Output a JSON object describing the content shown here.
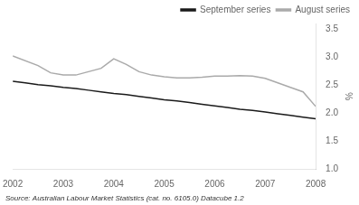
{
  "chart_data": {
    "type": "line",
    "series": [
      {
        "name": "September series",
        "color": "#1a1a1a",
        "x": [
          2002,
          2002.25,
          2002.5,
          2002.75,
          2003,
          2003.25,
          2003.5,
          2003.75,
          2004,
          2004.25,
          2004.5,
          2004.75,
          2005,
          2005.25,
          2005.5,
          2005.75,
          2006,
          2006.25,
          2006.5,
          2006.75,
          2007,
          2007.25,
          2007.5,
          2007.75,
          2008
        ],
        "values": [
          2.57,
          2.54,
          2.51,
          2.49,
          2.46,
          2.44,
          2.41,
          2.38,
          2.35,
          2.33,
          2.3,
          2.27,
          2.24,
          2.22,
          2.19,
          2.16,
          2.13,
          2.1,
          2.07,
          2.05,
          2.02,
          1.99,
          1.96,
          1.93,
          1.9
        ]
      },
      {
        "name": "August series",
        "color": "#aaaaaa",
        "x": [
          2002,
          2002.5,
          2002.75,
          2003,
          2003.25,
          2003.5,
          2003.75,
          2004,
          2004.25,
          2004.5,
          2004.75,
          2005,
          2005.25,
          2005.5,
          2005.75,
          2006,
          2006.25,
          2006.5,
          2006.75,
          2007,
          2007.25,
          2007.5,
          2007.75,
          2008
        ],
        "values": [
          3.02,
          2.85,
          2.72,
          2.68,
          2.68,
          2.74,
          2.8,
          2.97,
          2.87,
          2.74,
          2.68,
          2.65,
          2.63,
          2.63,
          2.64,
          2.66,
          2.66,
          2.67,
          2.66,
          2.62,
          2.54,
          2.46,
          2.38,
          2.12
        ]
      }
    ],
    "ylabel": "%",
    "xlim": [
      2002,
      2008
    ],
    "xticks": [
      2002,
      2003,
      2004,
      2005,
      2006,
      2007,
      2008
    ],
    "ylim": [
      1.0,
      3.6
    ],
    "yticks": [
      {
        "value": 1.0,
        "label": "1.0"
      },
      1.5,
      {
        "value": 2.0,
        "label": "2.0"
      },
      2.5,
      {
        "value": 3.0,
        "label": "3.0"
      },
      3.5
    ],
    "annotations": [
      "Source: Australian Labour Market Statistics (cat. no. 6105.0) Datacube 1.2"
    ],
    "grid": false,
    "legend": "upper right",
    "line_style": "solid"
  }
}
